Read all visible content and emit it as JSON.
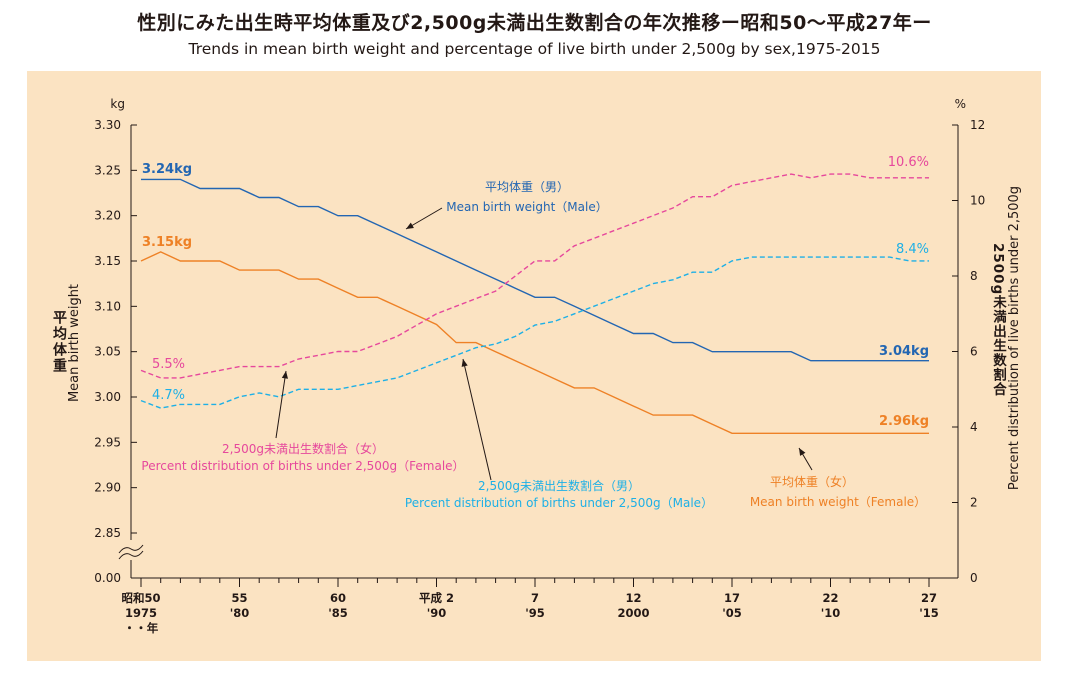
{
  "title": "性別にみた出生時平均体重及び2,500g未満出生数割合の年次推移ー昭和50〜平成27年ー",
  "subtitle": "Trends in mean birth weight and percentage of live birth under 2,500g by sex,1975-2015",
  "colors": {
    "male_weight": "#2366b2",
    "female_weight": "#ee8126",
    "male_pct": "#1eb0e6",
    "female_pct": "#e6489c",
    "background": "#fbe3c2"
  },
  "chart_data": {
    "type": "line",
    "x": [
      1975,
      1976,
      1977,
      1978,
      1979,
      1980,
      1981,
      1982,
      1983,
      1984,
      1985,
      1986,
      1987,
      1988,
      1989,
      1990,
      1991,
      1992,
      1993,
      1994,
      1995,
      1996,
      1997,
      1998,
      1999,
      2000,
      2001,
      2002,
      2003,
      2004,
      2005,
      2006,
      2007,
      2008,
      2009,
      2010,
      2011,
      2012,
      2013,
      2014,
      2015
    ],
    "left_axis": {
      "unit": "kg",
      "label_jp": "平均体重",
      "label_en": "Mean birth weight",
      "ylim": [
        2.85,
        3.3
      ],
      "ticks": [
        "3.30",
        "3.25",
        "3.20",
        "3.15",
        "3.10",
        "3.05",
        "3.00",
        "2.95",
        "2.90",
        "2.85"
      ],
      "zero_label": "0.00"
    },
    "right_axis": {
      "unit": "%",
      "label_jp": "2500g未満出生数割合",
      "label_en": "Percent distribution of live births under 2,500g",
      "ylim": [
        0,
        12
      ],
      "ticks": [
        "12",
        "10",
        "8",
        "6",
        "4",
        "2",
        "0"
      ]
    },
    "x_ticks": [
      {
        "era": "昭和50",
        "year": "1975"
      },
      {
        "era": "55",
        "year": "'80"
      },
      {
        "era": "60",
        "year": "'85"
      },
      {
        "era": "平成 2",
        "year": "'90"
      },
      {
        "era": "7",
        "year": "'95"
      },
      {
        "era": "12",
        "year": "2000"
      },
      {
        "era": "17",
        "year": "'05"
      },
      {
        "era": "22",
        "year": "'10"
      },
      {
        "era": "27",
        "year": "'15"
      }
    ],
    "x_axis_note": "・・年",
    "series": [
      {
        "name": "平均体重（男） Mean birth weight（Male）",
        "name_jp": "平均体重（男）",
        "name_en": "Mean birth weight（Male）",
        "axis": "left",
        "style": "solid",
        "values": [
          3.24,
          3.24,
          3.24,
          3.23,
          3.23,
          3.23,
          3.22,
          3.22,
          3.21,
          3.21,
          3.2,
          3.2,
          3.19,
          3.18,
          3.17,
          3.16,
          3.15,
          3.14,
          3.13,
          3.12,
          3.11,
          3.11,
          3.1,
          3.09,
          3.08,
          3.07,
          3.07,
          3.06,
          3.06,
          3.05,
          3.05,
          3.05,
          3.05,
          3.05,
          3.04,
          3.04,
          3.04,
          3.04,
          3.04,
          3.04,
          3.04
        ],
        "start_label": "3.24kg",
        "end_label": "3.04kg"
      },
      {
        "name": "平均体重（女） Mean birth weight（Female）",
        "name_jp": "平均体重（女）",
        "name_en": "Mean birth weight（Female）",
        "axis": "left",
        "style": "solid",
        "values": [
          3.15,
          3.16,
          3.15,
          3.15,
          3.15,
          3.14,
          3.14,
          3.14,
          3.13,
          3.13,
          3.12,
          3.11,
          3.11,
          3.1,
          3.09,
          3.08,
          3.06,
          3.06,
          3.05,
          3.04,
          3.03,
          3.02,
          3.01,
          3.01,
          3.0,
          2.99,
          2.98,
          2.98,
          2.98,
          2.97,
          2.96,
          2.96,
          2.96,
          2.96,
          2.96,
          2.96,
          2.96,
          2.96,
          2.96,
          2.96,
          2.96
        ],
        "start_label": "3.15kg",
        "end_label": "2.96kg"
      },
      {
        "name": "2,500g未満出生数割合（男） Percent distribution of births under 2,500g（Male）",
        "name_jp": "2,500g未満出生数割合（男）",
        "name_en": "Percent distribution of births under 2,500g（Male）",
        "axis": "right",
        "style": "dashed",
        "values": [
          4.7,
          4.5,
          4.6,
          4.6,
          4.6,
          4.8,
          4.9,
          4.8,
          5.0,
          5.0,
          5.0,
          5.1,
          5.2,
          5.3,
          5.5,
          5.7,
          5.9,
          6.1,
          6.2,
          6.4,
          6.7,
          6.8,
          7.0,
          7.2,
          7.4,
          7.6,
          7.8,
          7.9,
          8.1,
          8.1,
          8.4,
          8.5,
          8.5,
          8.5,
          8.5,
          8.5,
          8.5,
          8.5,
          8.5,
          8.4,
          8.4
        ],
        "start_label": "4.7%",
        "end_label": "8.4%"
      },
      {
        "name": "2,500g未満出生数割合（女） Percent distribution of births under 2,500g（Female）",
        "name_jp": "2,500g未満出生数割合（女）",
        "name_en": "Percent distribution of births under 2,500g（Female）",
        "axis": "right",
        "style": "dashed",
        "values": [
          5.5,
          5.3,
          5.3,
          5.4,
          5.5,
          5.6,
          5.6,
          5.6,
          5.8,
          5.9,
          6.0,
          6.0,
          6.2,
          6.4,
          6.7,
          7.0,
          7.2,
          7.4,
          7.6,
          8.0,
          8.4,
          8.4,
          8.8,
          9.0,
          9.2,
          9.4,
          9.6,
          9.8,
          10.1,
          10.1,
          10.4,
          10.5,
          10.6,
          10.7,
          10.6,
          10.7,
          10.7,
          10.6,
          10.6,
          10.6,
          10.6
        ],
        "start_label": "5.5%",
        "end_label": "10.6%"
      }
    ]
  }
}
